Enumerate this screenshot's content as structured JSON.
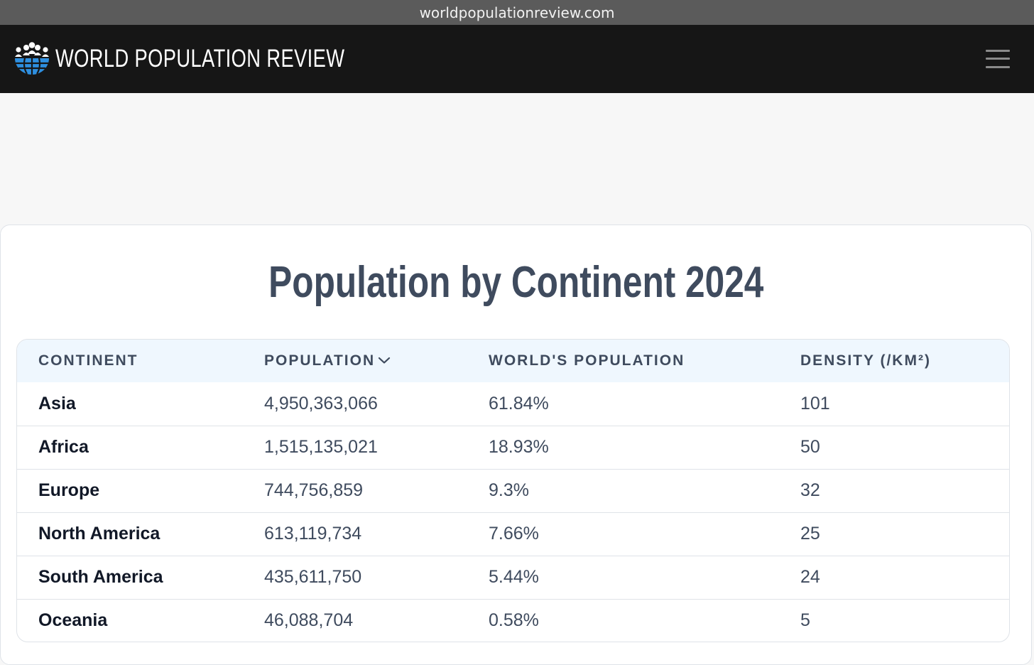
{
  "browser": {
    "url": "worldpopulationreview.com"
  },
  "header": {
    "site_name": "WORLD POPULATION REVIEW"
  },
  "main": {
    "title": "Population by Continent 2024"
  },
  "table": {
    "columns": [
      "CONTINENT",
      "POPULATION",
      "WORLD'S POPULATION",
      "DENSITY (/KM²)"
    ],
    "rows": [
      {
        "continent": "Asia",
        "population": "4,950,363,066",
        "share": "61.84%",
        "density": "101"
      },
      {
        "continent": "Africa",
        "population": "1,515,135,021",
        "share": "18.93%",
        "density": "50"
      },
      {
        "continent": "Europe",
        "population": "744,756,859",
        "share": "9.3%",
        "density": "32"
      },
      {
        "continent": "North America",
        "population": "613,119,734",
        "share": "7.66%",
        "density": "25"
      },
      {
        "continent": "South America",
        "population": "435,611,750",
        "share": "5.44%",
        "density": "24"
      },
      {
        "continent": "Oceania",
        "population": "46,088,704",
        "share": "0.58%",
        "density": "5"
      }
    ]
  },
  "colors": {
    "header_bg": "#161616",
    "accent_blue": "#2e8fe0",
    "text_dark": "#3f4b5e",
    "table_head_bg": "#eff7fe"
  },
  "icons": {
    "logo": "globe-people-icon",
    "menu": "hamburger-menu-icon",
    "sort": "chevron-down-icon"
  }
}
